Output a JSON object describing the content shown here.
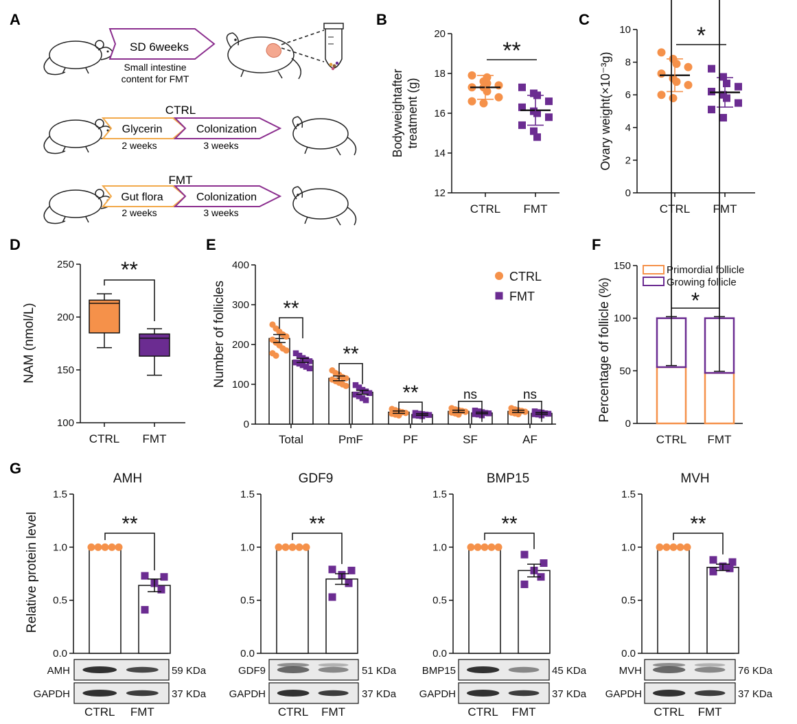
{
  "colors": {
    "ctrl": "#F5914A",
    "fmt": "#6B2C91",
    "axis": "#111111",
    "mouse": "#222222"
  },
  "panel_letters": [
    "A",
    "B",
    "C",
    "D",
    "E",
    "F",
    "G"
  ],
  "schematic": {
    "row1": {
      "arrow_label": "SD 6weeks",
      "caption_line1": "Small intestine",
      "caption_line2": "content for FMT"
    },
    "row2": {
      "title": "CTRL",
      "step1": "Glycerin",
      "step1_duration": "2 weeks",
      "step2": "Colonization",
      "step2_duration": "3 weeks"
    },
    "row3": {
      "title": "FMT",
      "step1": "Gut flora",
      "step1_duration": "2 weeks",
      "step2": "Colonization",
      "step2_duration": "3 weeks"
    }
  },
  "chart_data": [
    {
      "id": "B",
      "type": "scatter",
      "ylabel_line1": "Bodyweightafter",
      "ylabel_line2": "treatment (g)",
      "ylim": [
        12,
        20
      ],
      "yticks": [
        "12",
        "14",
        "16",
        "18",
        "20"
      ],
      "categories": [
        "CTRL",
        "FMT"
      ],
      "series": [
        {
          "name": "CTRL",
          "mean": 17.3,
          "sd": 0.6,
          "values": [
            17.9,
            17.6,
            17.5,
            17.4,
            17.3,
            17.3,
            17.1,
            16.8,
            16.6,
            16.5,
            17.8
          ]
        },
        {
          "name": "FMT",
          "mean": 16.15,
          "sd": 0.75,
          "values": [
            17.3,
            17.0,
            16.9,
            16.6,
            16.3,
            16.1,
            16.0,
            15.8,
            15.4,
            15.1,
            14.8
          ]
        }
      ],
      "significance": "**"
    },
    {
      "id": "C",
      "type": "scatter",
      "ylabel": "Ovary weight(×10⁻³g)",
      "ylim": [
        0,
        10
      ],
      "yticks": [
        "0",
        "2",
        "4",
        "6",
        "8",
        "10"
      ],
      "categories": [
        "CTRL",
        "FMT"
      ],
      "series": [
        {
          "name": "CTRL",
          "mean": 7.2,
          "sd": 1.0,
          "values": [
            8.6,
            8.2,
            7.9,
            7.7,
            7.3,
            7.0,
            6.8,
            6.6,
            6.0,
            5.8
          ]
        },
        {
          "name": "FMT",
          "mean": 6.15,
          "sd": 0.9,
          "values": [
            7.6,
            7.1,
            6.7,
            6.5,
            6.2,
            6.0,
            5.8,
            5.5,
            5.1,
            4.6
          ]
        }
      ],
      "significance": "*"
    },
    {
      "id": "D",
      "type": "box",
      "ylabel": "NAM (nmol/L)",
      "ylim": [
        100,
        250
      ],
      "yticks": [
        "100",
        "150",
        "200",
        "250"
      ],
      "categories": [
        "CTRL",
        "FMT"
      ],
      "series": [
        {
          "name": "CTRL",
          "min": 171,
          "q1": 185,
          "median": 213,
          "q3": 216,
          "max": 222
        },
        {
          "name": "FMT",
          "min": 145,
          "q1": 163,
          "median": 180,
          "q3": 184,
          "max": 189
        }
      ],
      "significance": "**"
    },
    {
      "id": "E",
      "type": "bar",
      "ylabel": "Number of follicles",
      "ylim": [
        0,
        400
      ],
      "yticks": [
        "0",
        "100",
        "200",
        "300",
        "400"
      ],
      "categories": [
        "Total",
        "PmF",
        "PF",
        "SF",
        "AF"
      ],
      "legend": [
        "CTRL",
        "FMT"
      ],
      "series": [
        {
          "name": "CTRL",
          "values": [
            215,
            115,
            30,
            32,
            32
          ],
          "sem": [
            10,
            6,
            3,
            3,
            3
          ],
          "points": [
            [
              250,
              240,
              232,
              225,
              220,
              212,
              205,
              198,
              190,
              185,
              178,
              172
            ],
            [
              135,
              128,
              124,
              118,
              115,
              112,
              108,
              104,
              100,
              96
            ],
            [
              38,
              35,
              32,
              30,
              28,
              26,
              24,
              22
            ],
            [
              40,
              37,
              35,
              33,
              31,
              29,
              27,
              24
            ],
            [
              40,
              37,
              35,
              33,
              31,
              29,
              27,
              25
            ]
          ]
        },
        {
          "name": "FMT",
          "values": [
            160,
            80,
            24,
            28,
            27
          ],
          "sem": [
            5,
            5,
            2,
            2,
            2
          ],
          "points": [
            [
              178,
              172,
              166,
              162,
              158,
              155,
              152,
              148,
              144,
              140
            ],
            [
              98,
              92,
              86,
              82,
              78,
              74,
              70,
              65,
              60
            ],
            [
              28,
              26,
              25,
              24,
              23,
              22,
              21,
              20
            ],
            [
              34,
              32,
              30,
              28,
              27,
              25,
              24,
              22
            ],
            [
              32,
              30,
              29,
              27,
              26,
              25,
              24,
              22
            ]
          ]
        }
      ],
      "significance": [
        "**",
        "**",
        "**",
        "ns",
        "ns"
      ]
    },
    {
      "id": "F",
      "type": "stacked-bar",
      "ylabel": "Percentage of follicle (%)",
      "ylim": [
        0,
        150
      ],
      "yticks": [
        "0",
        "50",
        "100",
        "150"
      ],
      "categories": [
        "CTRL",
        "FMT"
      ],
      "legend": [
        "Primordial follicle",
        "Growing follicle"
      ],
      "series": [
        {
          "name": "Primordial follicle",
          "values": [
            53.5,
            48.0
          ],
          "sem": [
            1.5,
            1.5
          ]
        },
        {
          "name": "Growing follicle",
          "values": [
            46.5,
            52.0
          ],
          "sem": [
            1.5,
            1.5
          ]
        }
      ],
      "significance": "*"
    },
    {
      "id": "G-AMH",
      "type": "bar",
      "title": "AMH",
      "ylabel": "Relative protein level",
      "ylim": [
        0,
        1.5
      ],
      "yticks": [
        "0.0",
        "0.5",
        "1.0",
        "1.5"
      ],
      "categories": [
        "CTRL",
        "FMT"
      ],
      "series": [
        {
          "name": "CTRL",
          "value": 1.0,
          "sem": 0,
          "points": [
            1.0,
            1.0,
            1.0,
            1.0,
            1.0
          ]
        },
        {
          "name": "FMT",
          "value": 0.64,
          "sem": 0.06,
          "points": [
            0.73,
            0.72,
            0.66,
            0.6,
            0.41
          ]
        }
      ],
      "significance": "**",
      "blot": {
        "protein": "AMH",
        "protein_kda": "59 KDa",
        "control": "GAPDH",
        "control_kda": "37 KDa"
      }
    },
    {
      "id": "G-GDF9",
      "type": "bar",
      "title": "GDF9",
      "ylim": [
        0,
        1.5
      ],
      "yticks": [
        "0.0",
        "0.5",
        "1.0",
        "1.5"
      ],
      "categories": [
        "CTRL",
        "FMT"
      ],
      "series": [
        {
          "name": "CTRL",
          "value": 1.0,
          "sem": 0,
          "points": [
            1.0,
            1.0,
            1.0,
            1.0,
            1.0
          ]
        },
        {
          "name": "FMT",
          "value": 0.7,
          "sem": 0.05,
          "points": [
            0.79,
            0.78,
            0.74,
            0.66,
            0.53
          ]
        }
      ],
      "significance": "**",
      "blot": {
        "protein": "GDF9",
        "protein_kda": "51 KDa",
        "control": "GAPDH",
        "control_kda": "37 KDa"
      }
    },
    {
      "id": "G-BMP15",
      "type": "bar",
      "title": "BMP15",
      "ylim": [
        0,
        1.5
      ],
      "yticks": [
        "0.0",
        "0.5",
        "1.0",
        "1.5"
      ],
      "categories": [
        "CTRL",
        "FMT"
      ],
      "series": [
        {
          "name": "CTRL",
          "value": 1.0,
          "sem": 0,
          "points": [
            1.0,
            1.0,
            1.0,
            1.0,
            1.0
          ]
        },
        {
          "name": "FMT",
          "value": 0.78,
          "sem": 0.06,
          "points": [
            0.93,
            0.85,
            0.78,
            0.72,
            0.65
          ]
        }
      ],
      "significance": "**",
      "blot": {
        "protein": "BMP15",
        "protein_kda": "45 KDa",
        "control": "GAPDH",
        "control_kda": "37 KDa"
      }
    },
    {
      "id": "G-MVH",
      "type": "bar",
      "title": "MVH",
      "ylim": [
        0,
        1.5
      ],
      "yticks": [
        "0.0",
        "0.5",
        "1.0",
        "1.5"
      ],
      "categories": [
        "CTRL",
        "FMT"
      ],
      "series": [
        {
          "name": "CTRL",
          "value": 1.0,
          "sem": 0,
          "points": [
            1.0,
            1.0,
            1.0,
            1.0,
            1.0
          ]
        },
        {
          "name": "FMT",
          "value": 0.81,
          "sem": 0.03,
          "points": [
            0.88,
            0.86,
            0.82,
            0.8,
            0.77
          ]
        }
      ],
      "significance": "**",
      "blot": {
        "protein": "MVH",
        "protein_kda": "76 KDa",
        "control": "GAPDH",
        "control_kda": "37 KDa"
      }
    }
  ]
}
